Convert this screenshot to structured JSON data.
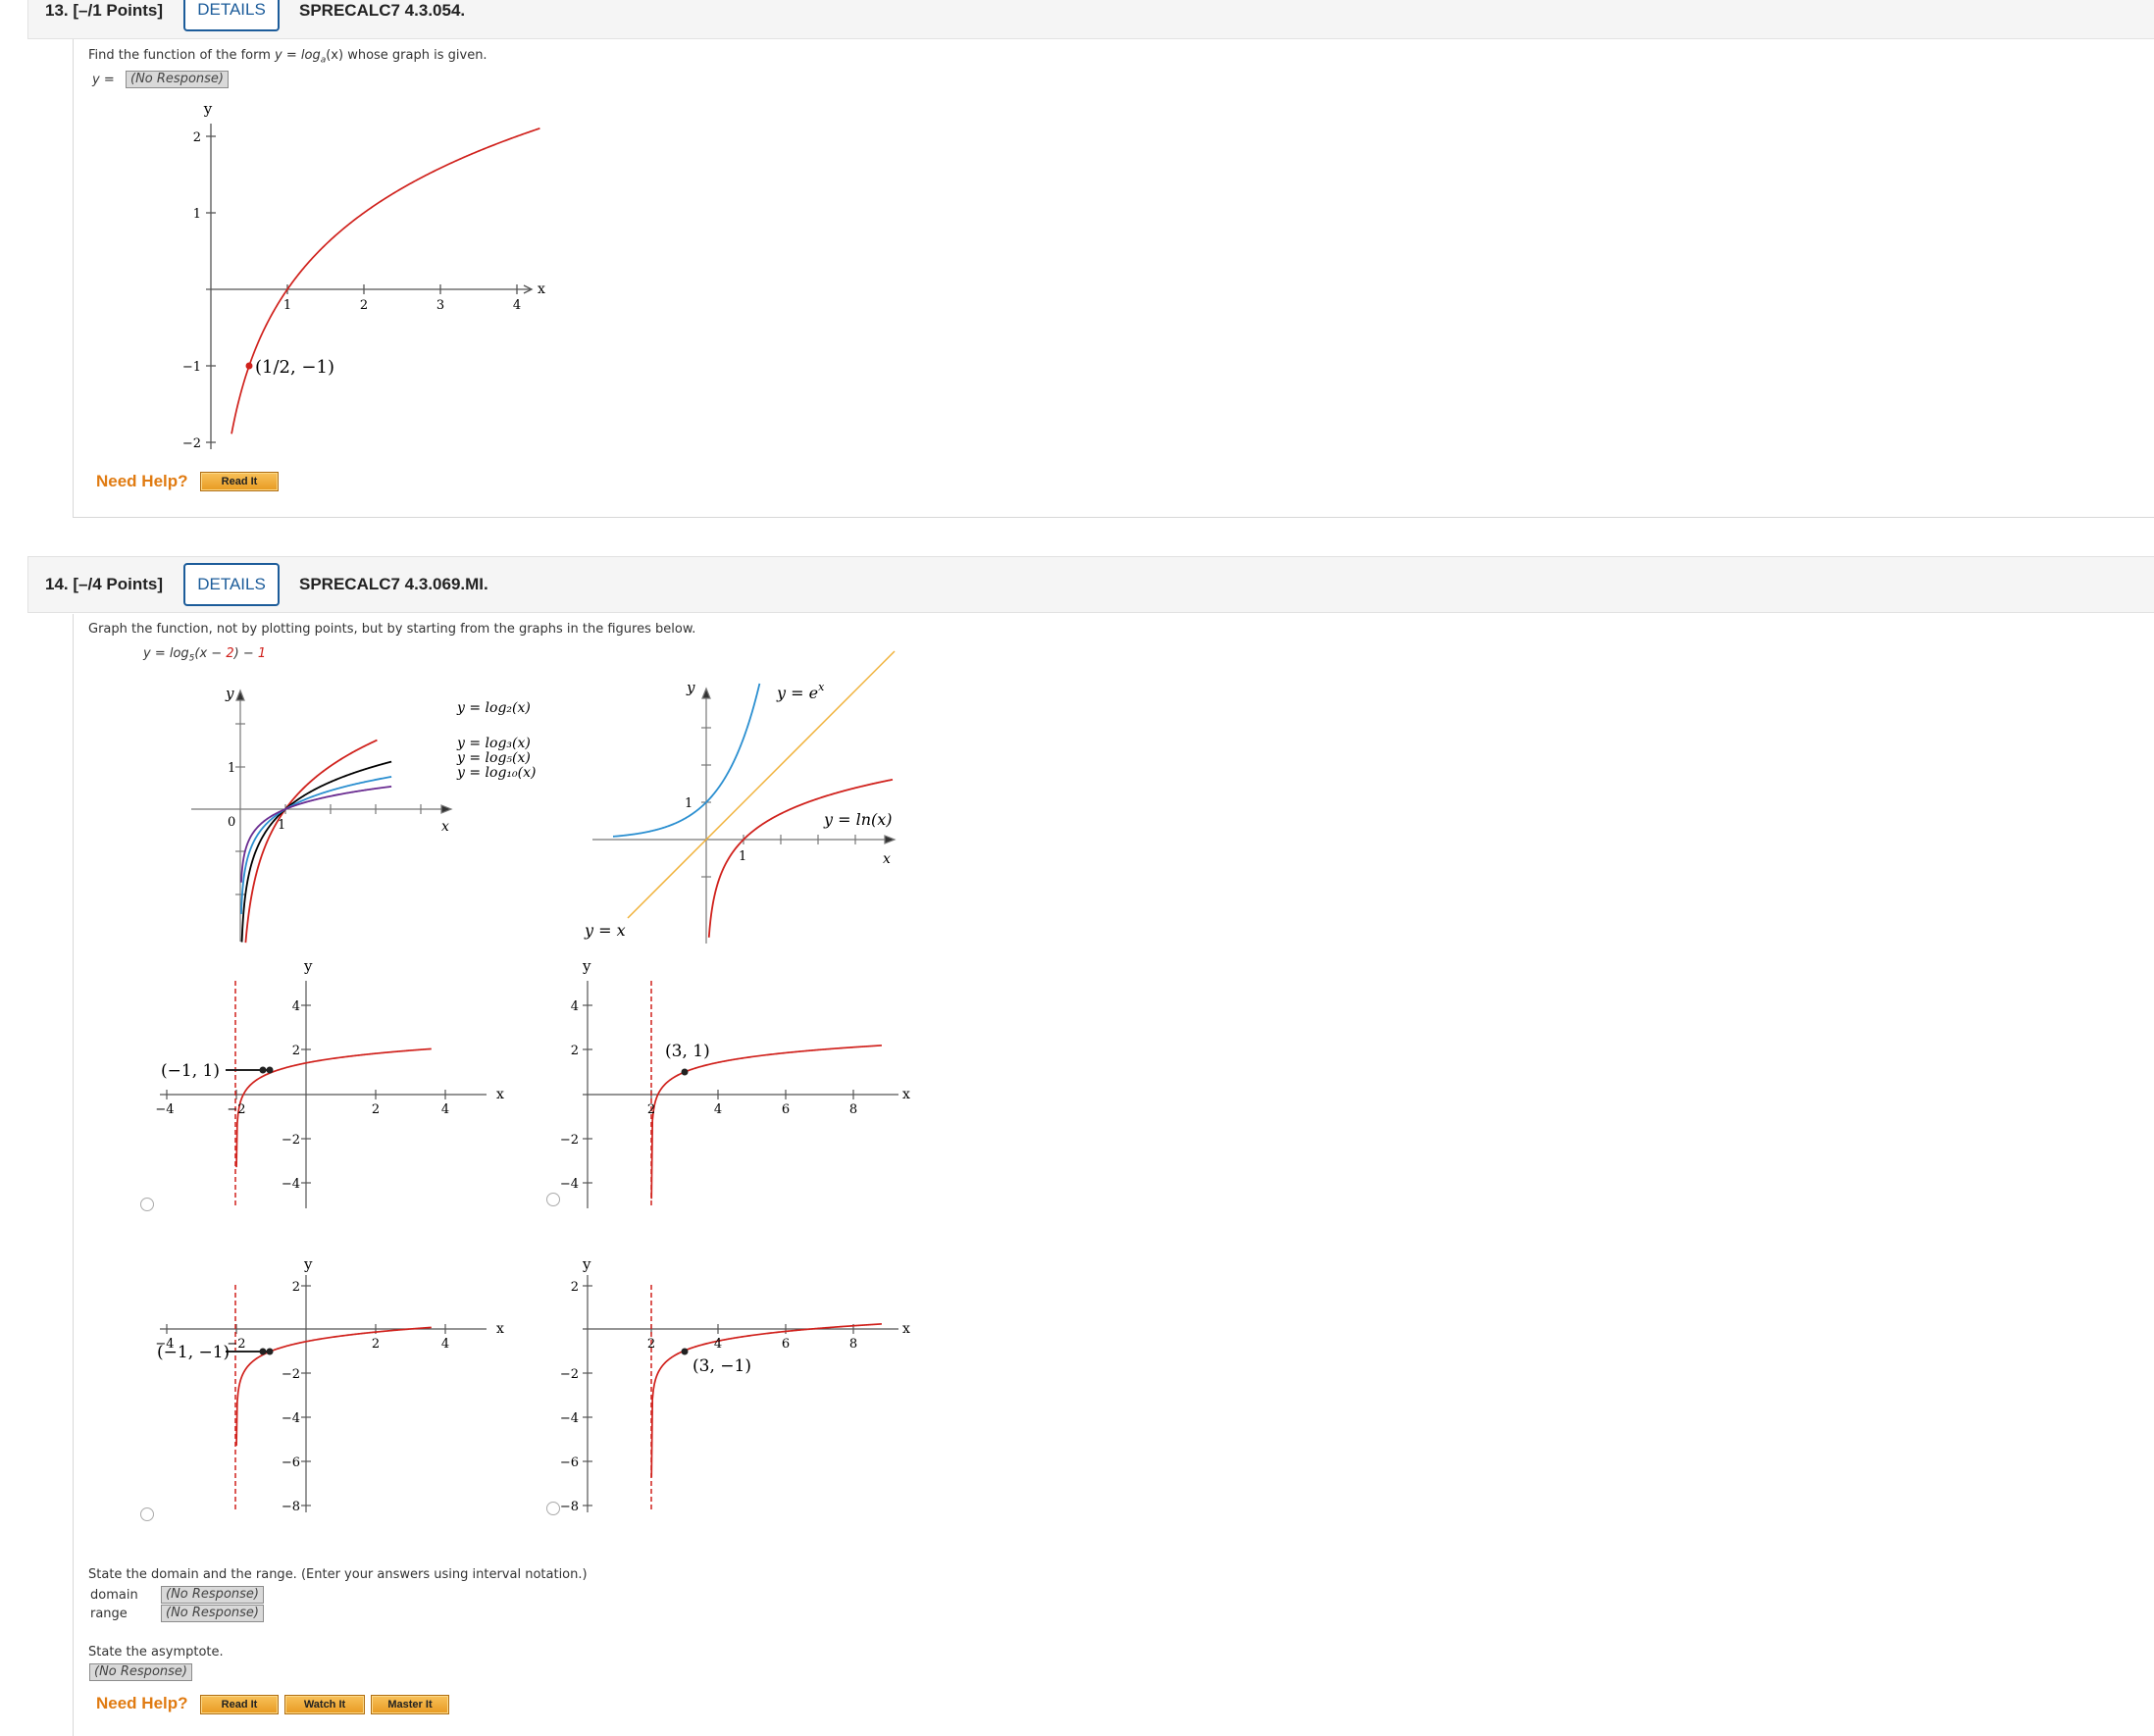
{
  "q13": {
    "number": "13. [–/1 Points]",
    "details": "DETAILS",
    "code": "SPRECALC7 4.3.054.",
    "prompt_a": "Find the function of the form ",
    "prompt_b": "y = log",
    "prompt_sub": "a",
    "prompt_c": "(x) whose graph is given.",
    "answer_label": "y =",
    "answer_value": "(No Response)",
    "graph": {
      "y_label": "y",
      "x_label": "x",
      "y_ticks": [
        "2",
        "1",
        "−1",
        "−2"
      ],
      "x_ticks": [
        "1",
        "2",
        "3",
        "4"
      ],
      "point_label": "(1/2, −1)"
    },
    "need_help": "Need Help?",
    "read_it": "Read It"
  },
  "q14": {
    "number": "14. [–/4 Points]",
    "details": "DETAILS",
    "code": "SPRECALC7 4.3.069.MI.",
    "prompt": "Graph the function, not by plotting points, but by starting from the graphs in the figures below.",
    "func_a": "y = log",
    "func_sub": "5",
    "func_b": "(x − ",
    "func_2": "2",
    "func_c": ") − ",
    "func_1": "1",
    "ref1": {
      "y_label": "y",
      "x_label": "x",
      "origin": "0",
      "one_y": "1",
      "one_x": "1",
      "curves": [
        "y = log₂(x)",
        "y = log₃(x)",
        "y = log₅(x)",
        "y = log₁₀(x)"
      ],
      "colors": [
        "#d0211c",
        "#000000",
        "#2b8fd0",
        "#6a2c91"
      ]
    },
    "ref2": {
      "y_label": "y",
      "x_label": "x",
      "one_y": "1",
      "one_x": "1",
      "exp_label": "y = e",
      "exp_sup": "x",
      "ln_label": "y = ln(x)",
      "id_label": "y = x"
    },
    "opt_a": {
      "y_label": "y",
      "x_label": "x",
      "y_ticks": [
        "4",
        "2",
        "−2",
        "−4"
      ],
      "x_ticks": [
        "−4",
        "−2",
        "2",
        "4"
      ],
      "point_label": "(−1, 1)"
    },
    "opt_b": {
      "y_label": "y",
      "x_label": "x",
      "y_ticks": [
        "4",
        "2",
        "−2",
        "−4"
      ],
      "x_ticks": [
        "2",
        "4",
        "6",
        "8"
      ],
      "point_label": "(3, 1)"
    },
    "opt_c": {
      "y_label": "y",
      "x_label": "x",
      "y_ticks": [
        "2",
        "−2",
        "−4",
        "−6",
        "−8"
      ],
      "x_ticks": [
        "−4",
        "−2",
        "2",
        "4"
      ],
      "point_label": "(−1, −1)"
    },
    "opt_d": {
      "y_label": "y",
      "x_label": "x",
      "y_ticks": [
        "2",
        "−2",
        "−4",
        "−6",
        "−8"
      ],
      "x_ticks": [
        "2",
        "4",
        "6",
        "8"
      ],
      "point_label": "(3, −1)"
    },
    "domain_prompt": "State the domain and the range. (Enter your answers using interval notation.)",
    "domain_label": "domain",
    "domain_value": "(No Response)",
    "range_label": "range",
    "range_value": "(No Response)",
    "asymptote_prompt": "State the asymptote.",
    "asymptote_value": "(No Response)",
    "need_help": "Need Help?",
    "read_it": "Read It",
    "watch_it": "Watch It",
    "master_it": "Master It"
  }
}
